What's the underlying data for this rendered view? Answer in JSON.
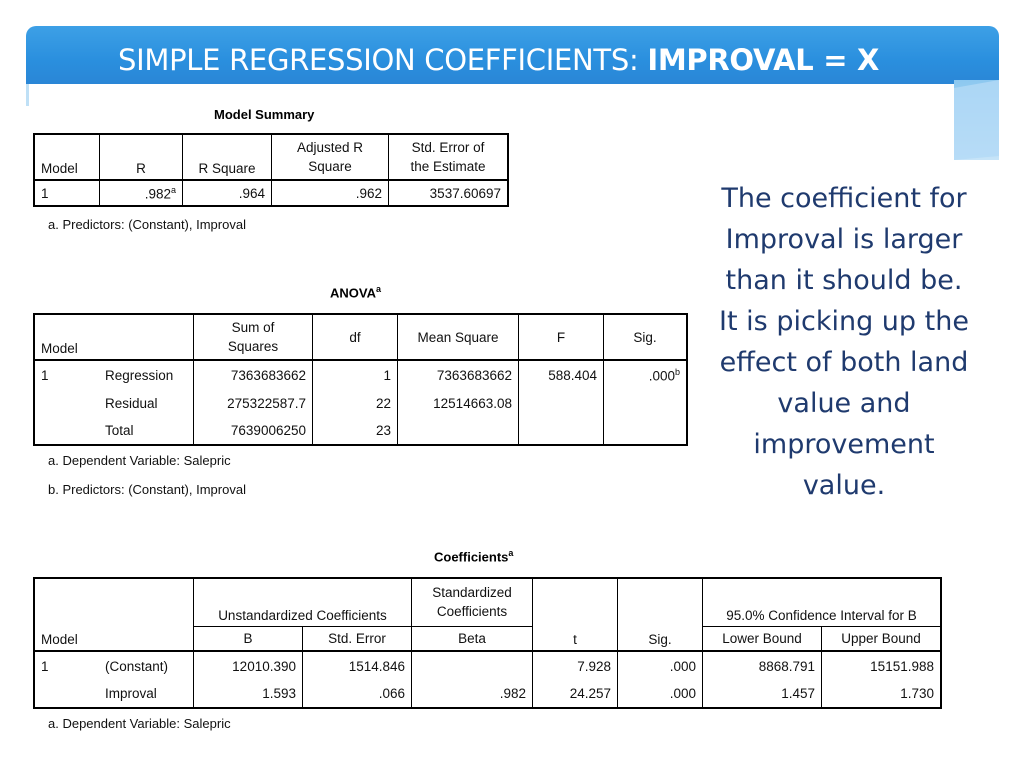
{
  "slide": {
    "title_prefix": "SIMPLE REGRESSION COEFFICIENTS: ",
    "title_bold": "IMPROVAL = X",
    "side_text_lines": [
      "The coefficient for",
      "Improval is larger",
      "than it should be.",
      "It is picking up the",
      "effect of both land",
      "value and",
      "improvement",
      "value."
    ],
    "accent_color": "#2a8fde",
    "text_color": "#1f3a6e"
  },
  "model_summary": {
    "title": "Model Summary",
    "headers": {
      "model": "Model",
      "r": "R",
      "r_square": "R Square",
      "adj_r_1": "Adjusted R",
      "adj_r_2": "Square",
      "se_1": "Std. Error of",
      "se_2": "the Estimate"
    },
    "row": {
      "model": "1",
      "r": ".982",
      "r_sup": "a",
      "r_square": ".964",
      "adj_r": ".962",
      "se": "3537.60697"
    },
    "note": "a. Predictors: (Constant), Improval"
  },
  "anova": {
    "title": "ANOVA",
    "title_sup": "a",
    "headers": {
      "model": "Model",
      "ss_1": "Sum of",
      "ss_2": "Squares",
      "df": "df",
      "ms": "Mean Square",
      "f": "F",
      "sig": "Sig."
    },
    "model_number": "1",
    "rows": [
      {
        "label": "Regression",
        "ss": "7363683662",
        "df": "1",
        "ms": "7363683662",
        "f": "588.404",
        "sig": ".000",
        "sig_sup": "b"
      },
      {
        "label": "Residual",
        "ss": "275322587.7",
        "df": "22",
        "ms": "12514663.08",
        "f": "",
        "sig": "",
        "sig_sup": ""
      },
      {
        "label": "Total",
        "ss": "7639006250",
        "df": "23",
        "ms": "",
        "f": "",
        "sig": "",
        "sig_sup": ""
      }
    ],
    "notes": [
      "a. Dependent Variable: Salepric",
      "b. Predictors: (Constant), Improval"
    ]
  },
  "coefficients": {
    "title": "Coefficients",
    "title_sup": "a",
    "headers": {
      "model": "Model",
      "unstd": "Unstandardized Coefficients",
      "std_1": "Standardized",
      "std_2": "Coefficients",
      "ci": "95.0% Confidence Interval for B",
      "b": "B",
      "se": "Std. Error",
      "beta": "Beta",
      "t": "t",
      "sig": "Sig.",
      "lower": "Lower Bound",
      "upper": "Upper Bound"
    },
    "model_number": "1",
    "rows": [
      {
        "label": "(Constant)",
        "b": "12010.390",
        "se": "1514.846",
        "beta": "",
        "t": "7.928",
        "sig": ".000",
        "lower": "8868.791",
        "upper": "15151.988"
      },
      {
        "label": "Improval",
        "b": "1.593",
        "se": ".066",
        "beta": ".982",
        "t": "24.257",
        "sig": ".000",
        "lower": "1.457",
        "upper": "1.730"
      }
    ],
    "note": "a. Dependent Variable: Salepric"
  }
}
